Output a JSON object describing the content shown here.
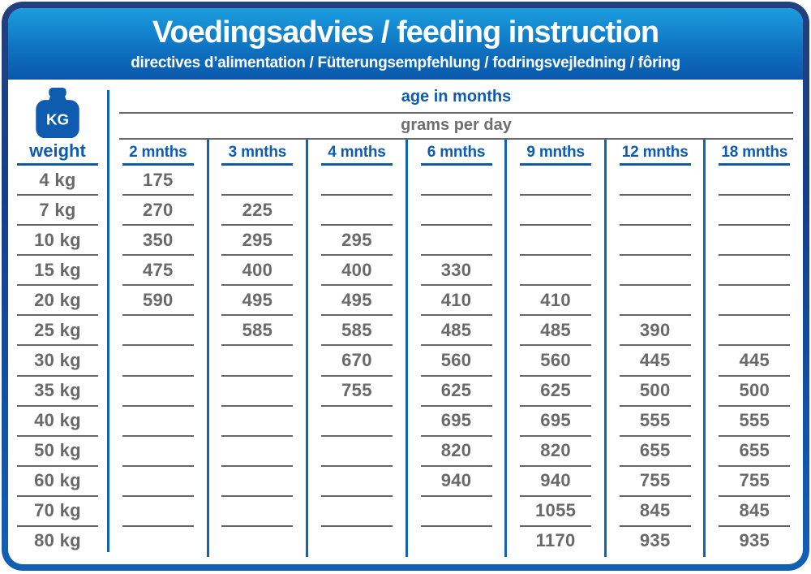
{
  "header": {
    "title": "Voedingsadvies / feeding instruction",
    "subtitle": "directives d’alimentation / Fütterungsempfehlung / fodringsvejledning / fôring"
  },
  "table": {
    "weight_icon_label": "KG",
    "weight_header": "weight",
    "age_header": "age in months",
    "grams_header": "grams per day",
    "month_headers": [
      "2 mnths",
      "3 mnths",
      "4 mnths",
      "6 mnths",
      "9 mnths",
      "12 mnths",
      "18 mnths"
    ],
    "weights": [
      "4 kg",
      "7 kg",
      "10 kg",
      "15 kg",
      "20 kg",
      "25 kg",
      "30 kg",
      "35 kg",
      "40 kg",
      "50 kg",
      "60 kg",
      "70 kg",
      "80 kg"
    ],
    "values": [
      [
        "175",
        "",
        "",
        "",
        "",
        "",
        ""
      ],
      [
        "270",
        "225",
        "",
        "",
        "",
        "",
        ""
      ],
      [
        "350",
        "295",
        "295",
        "",
        "",
        "",
        ""
      ],
      [
        "475",
        "400",
        "400",
        "330",
        "",
        "",
        ""
      ],
      [
        "590",
        "495",
        "495",
        "410",
        "410",
        "",
        ""
      ],
      [
        "",
        "585",
        "585",
        "485",
        "485",
        "390",
        ""
      ],
      [
        "",
        "",
        "670",
        "560",
        "560",
        "445",
        "445"
      ],
      [
        "",
        "",
        "755",
        "625",
        "625",
        "500",
        "500"
      ],
      [
        "",
        "",
        "",
        "695",
        "695",
        "555",
        "555"
      ],
      [
        "",
        "",
        "",
        "820",
        "820",
        "655",
        "655"
      ],
      [
        "",
        "",
        "",
        "940",
        "940",
        "755",
        "755"
      ],
      [
        "",
        "",
        "",
        "",
        "1055",
        "845",
        "845"
      ],
      [
        "",
        "",
        "",
        "",
        "1170",
        "935",
        "935"
      ]
    ]
  },
  "colors": {
    "accent_blue": "#0e5bb0",
    "divider_blue": "#1263b6",
    "value_gray": "#696969",
    "line_gray": "#666666",
    "header_gradient_top": "#1b9ddd",
    "header_gradient_bottom": "#0a57ab",
    "border_gradient_top": "#23407f",
    "border_gradient_bottom": "#1160b5"
  }
}
